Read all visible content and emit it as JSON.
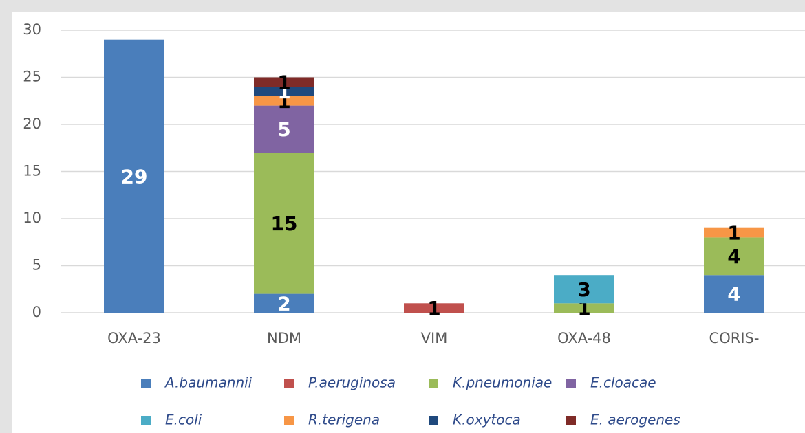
{
  "chart_data": {
    "type": "bar",
    "stacked": true,
    "categories": [
      "OXA-23",
      "NDM",
      "VIM",
      "OXA-48",
      "CORIS-"
    ],
    "series": [
      {
        "name": "A.baumannii",
        "color": "#4a7ebb",
        "values": [
          29,
          2,
          null,
          null,
          4
        ]
      },
      {
        "name": "P.aeruginosa",
        "color": "#c0504d",
        "values": [
          null,
          null,
          1,
          null,
          null
        ]
      },
      {
        "name": "K.pneumoniae",
        "color": "#9bbb59",
        "values": [
          null,
          15,
          null,
          1,
          4
        ]
      },
      {
        "name": "E.cloacae",
        "color": "#8064a2",
        "values": [
          null,
          5,
          null,
          null,
          null
        ]
      },
      {
        "name": "E.coli",
        "color": "#4bacc6",
        "values": [
          null,
          null,
          null,
          3,
          null
        ]
      },
      {
        "name": "R.terigena",
        "color": "#f79646",
        "values": [
          null,
          1,
          null,
          null,
          1
        ]
      },
      {
        "name": "K.oxytoca",
        "color": "#1f497d",
        "values": [
          null,
          1,
          null,
          null,
          null
        ]
      },
      {
        "name": "E. aerogenes",
        "color": "#7f2b28",
        "values": [
          null,
          1,
          null,
          null,
          null
        ]
      }
    ],
    "ylim": [
      0,
      30
    ],
    "yticks": [
      0,
      5,
      10,
      15,
      20,
      25,
      30
    ],
    "grid": true,
    "legend": "bottom"
  }
}
